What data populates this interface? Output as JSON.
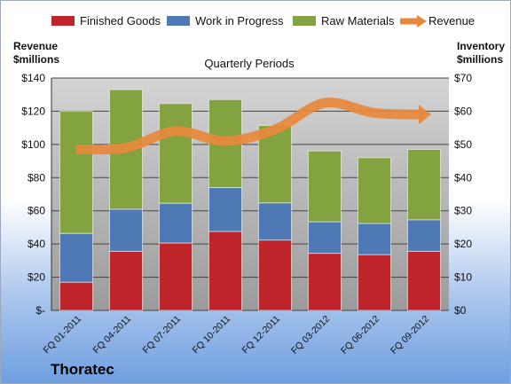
{
  "chart_data": {
    "type": "bar",
    "stacked": true,
    "company": "Thoratec",
    "subtitle": "Quarterly Periods",
    "y_left_label": [
      "Revenue",
      "$millions"
    ],
    "y_right_label": [
      "Inventory",
      "$millions"
    ],
    "categories": [
      "FQ 01-2011",
      "FQ 04-2011",
      "FQ 07-2011",
      "FQ 10-2011",
      "FQ 12-2011",
      "FQ 03-2012",
      "FQ 06-2012",
      "FQ 09-2012"
    ],
    "series": [
      {
        "name": "Finished Goods",
        "axis": "right",
        "color": "#c0242b",
        "values": [
          8.5,
          17.8,
          20.3,
          23.8,
          21.2,
          17.2,
          16.8,
          17.8
        ]
      },
      {
        "name": "Work in Progress",
        "axis": "right",
        "color": "#4f79b5",
        "values": [
          14.7,
          12.7,
          12.0,
          13.2,
          11.2,
          9.5,
          9.4,
          9.5
        ]
      },
      {
        "name": "Raw Materials",
        "axis": "right",
        "color": "#82a33f",
        "values": [
          36.8,
          36.0,
          30.0,
          26.5,
          23.3,
          21.3,
          19.8,
          21.2
        ]
      }
    ],
    "line_series": {
      "name": "Revenue",
      "axis": "left",
      "color": "#e8883c",
      "values": [
        97,
        98,
        108,
        102,
        109,
        125,
        119,
        118
      ]
    },
    "y_left": {
      "min": 0,
      "max": 140,
      "step": 20,
      "ticks": [
        "$-",
        "$20",
        "$40",
        "$60",
        "$80",
        "$100",
        "$120",
        "$140"
      ]
    },
    "y_right": {
      "min": 0,
      "max": 70,
      "step": 10,
      "ticks": [
        "$0",
        "$10",
        "$20",
        "$30",
        "$40",
        "$50",
        "$60",
        "$70"
      ]
    },
    "grid": true,
    "legend_position": "top"
  }
}
